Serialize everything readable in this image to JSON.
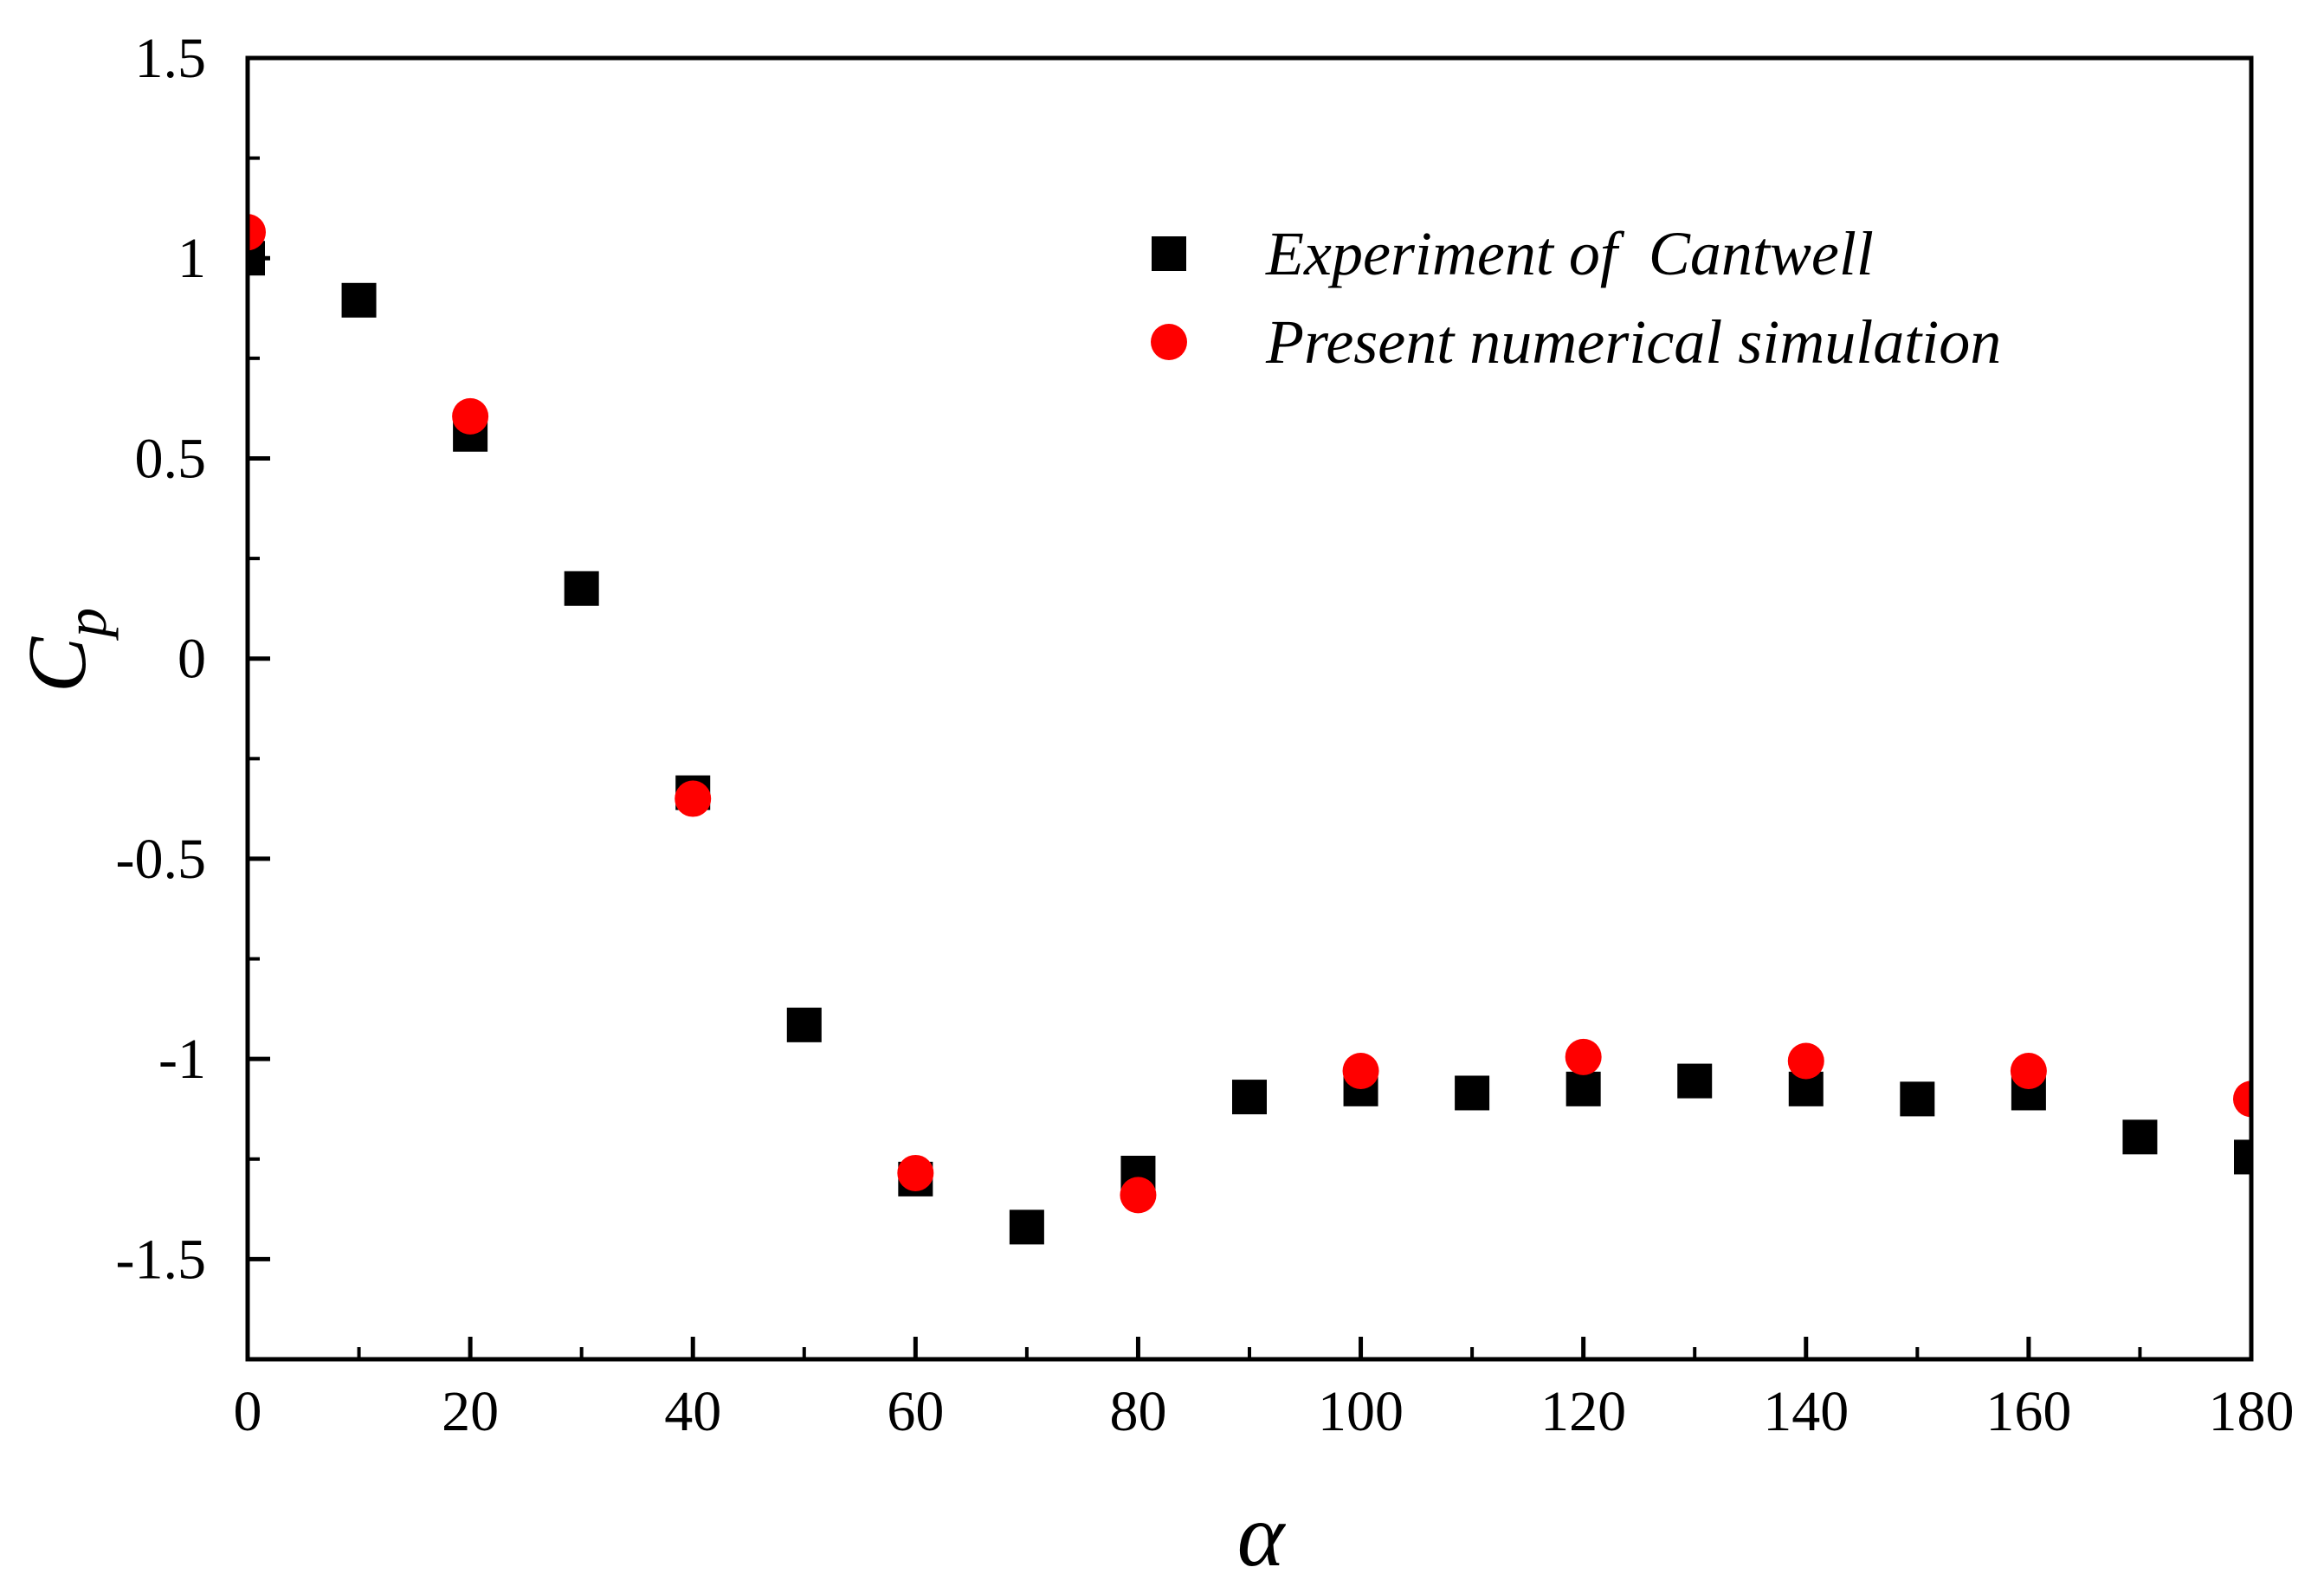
{
  "chart_data": {
    "type": "scatter",
    "title": "",
    "xlabel": "α",
    "ylabel": "C",
    "ylabel_subscript": "p",
    "xlim": [
      0,
      180
    ],
    "ylim": [
      -1.75,
      1.5
    ],
    "x_ticks": [
      0,
      20,
      40,
      60,
      80,
      100,
      120,
      140,
      160,
      180
    ],
    "x_tick_labels": [
      "0",
      "20",
      "40",
      "60",
      "80",
      "100",
      "120",
      "140",
      "160",
      "180"
    ],
    "y_ticks": [
      -1.5,
      -1,
      -0.5,
      0,
      0.5,
      1,
      1.5
    ],
    "y_tick_labels": [
      "-1.5",
      "-1",
      "-0.5",
      "0",
      "0.5",
      "1",
      "1.5"
    ],
    "grid": false,
    "legend_position": "top-right",
    "series": [
      {
        "name": "Experiment of  Cantwell",
        "marker": "square",
        "color": "#000000",
        "x": [
          0,
          10,
          20,
          30,
          40,
          50,
          60,
          70,
          80,
          90,
          100,
          110,
          120,
          130,
          140,
          150,
          160,
          170,
          180
        ],
        "y": [
          1.0,
          0.895,
          0.56,
          0.175,
          -0.335,
          -0.915,
          -1.3,
          -1.42,
          -1.285,
          -1.095,
          -1.075,
          -1.085,
          -1.075,
          -1.055,
          -1.075,
          -1.1,
          -1.085,
          -1.195,
          -1.245
        ]
      },
      {
        "name": "Present numerical simulation",
        "marker": "circle",
        "color": "#ff0000",
        "x": [
          0,
          20,
          40,
          60,
          80,
          100,
          120,
          140,
          160,
          180
        ],
        "y": [
          1.065,
          0.605,
          -0.35,
          -1.285,
          -1.34,
          -1.03,
          -0.995,
          -1.005,
          -1.03,
          -1.1
        ]
      }
    ]
  }
}
